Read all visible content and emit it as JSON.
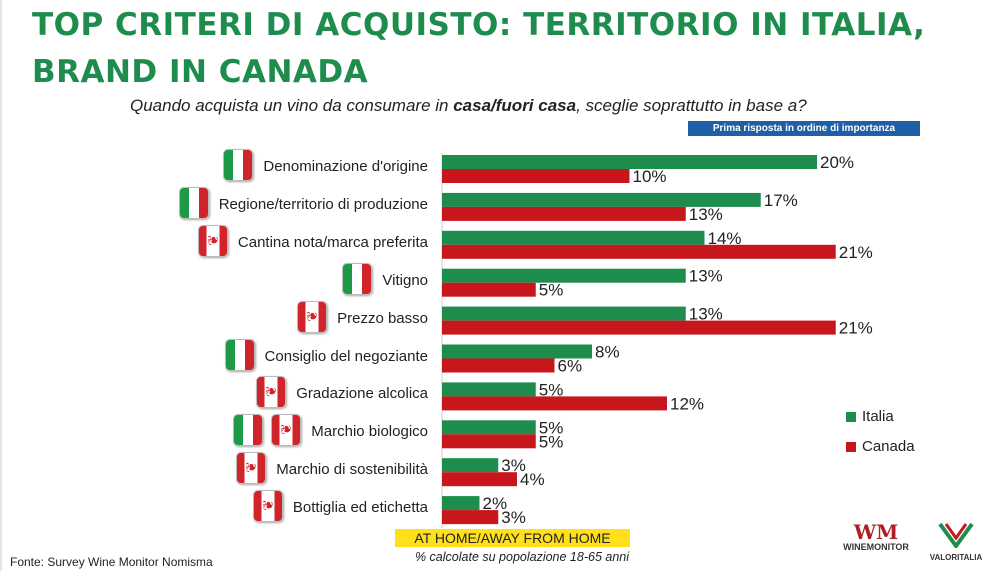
{
  "title_line1": "TOP CRITERI DI ACQUISTO: TERRITORIO IN ITALIA,",
  "title_line2": "BRAND IN CANADA",
  "subtitle_pre": "Quando acquista un vino da consumare in ",
  "subtitle_bold": "casa/fuori casa",
  "subtitle_post": ", sceglie soprattutto in base a?",
  "badge": "Prima risposta in ordine di importanza",
  "home_box": "AT HOME/AWAY FROM HOME",
  "note": "% calcolate su popolazione 18-65 anni",
  "source": "Fonte: Survey Wine Monitor Nomisma",
  "logo_winemonitor": "WINEMONITOR",
  "logo_valoritalia": "VALORITALIA",
  "colors": {
    "italia": "#1e8c4c",
    "canada": "#c8161d",
    "title": "#1e8c4c"
  },
  "chart_data": {
    "type": "bar",
    "orientation": "horizontal",
    "categories": [
      "Denominazione d'origine",
      "Regione/territorio di produzione",
      "Cantina nota/marca preferita",
      "Vitigno",
      "Prezzo basso",
      "Consiglio del negoziante",
      "Gradazione alcolica",
      "Marchio biologico",
      "Marchio di sostenibilità",
      "Bottiglia ed etichetta"
    ],
    "flags": [
      [
        "it"
      ],
      [
        "it"
      ],
      [
        "ca"
      ],
      [
        "it"
      ],
      [
        "ca"
      ],
      [
        "it"
      ],
      [
        "ca"
      ],
      [
        "it",
        "ca"
      ],
      [
        "ca"
      ],
      [
        "ca"
      ]
    ],
    "series": [
      {
        "name": "Italia",
        "values": [
          20,
          17,
          14,
          13,
          13,
          8,
          5,
          5,
          3,
          2
        ]
      },
      {
        "name": "Canada",
        "values": [
          10,
          13,
          21,
          5,
          21,
          6,
          12,
          5,
          4,
          3
        ]
      }
    ],
    "value_suffix": "%",
    "xlim": [
      0,
      21
    ],
    "legend_position": "right",
    "grid": false
  }
}
